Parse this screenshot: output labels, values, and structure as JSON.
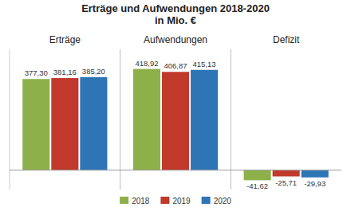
{
  "chart_data": {
    "type": "bar",
    "title": "Erträge und Aufwendungen 2018-2020\nin Mio. €",
    "categories": [
      "Erträge",
      "Aufwendungen",
      "Defizit"
    ],
    "series": [
      {
        "name": "2018",
        "color": "#8DB04A",
        "values": [
          377.3,
          418.92,
          -41.62
        ],
        "value_labels": [
          "377,30",
          "418,92",
          "-41,62"
        ]
      },
      {
        "name": "2019",
        "color": "#C0392B",
        "values": [
          381.16,
          406.87,
          -25.71
        ],
        "value_labels": [
          "381,16",
          "406,87",
          "-25,71"
        ]
      },
      {
        "name": "2020",
        "color": "#2E75B6",
        "values": [
          385.2,
          415.13,
          -29.93
        ],
        "value_labels": [
          "385,20",
          "415,13",
          "-29,93"
        ]
      }
    ],
    "ylim": [
      -80,
      500
    ],
    "grid": false,
    "legend": "bottom",
    "data_labels": true,
    "tick_labels": "x"
  }
}
